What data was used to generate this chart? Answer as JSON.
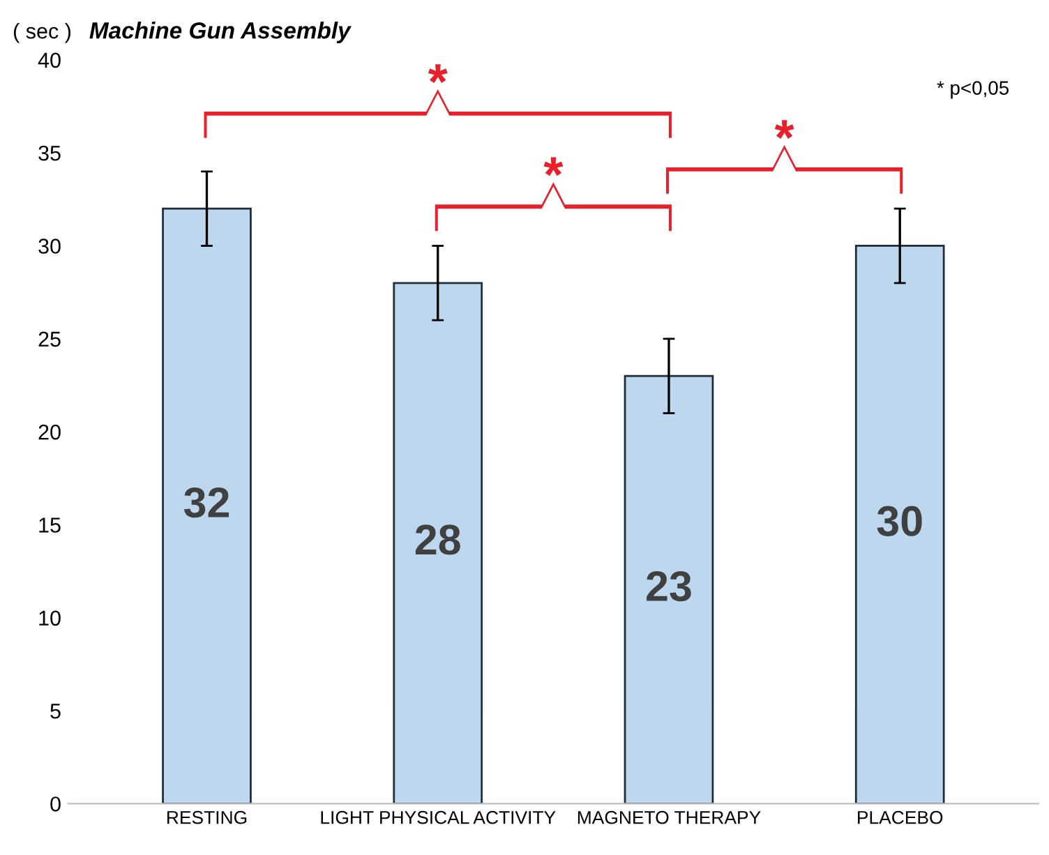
{
  "chart_data": {
    "type": "bar",
    "title": "Machine Gun Assembly",
    "ylabel": "( sec )",
    "categories": [
      "RESTING",
      "LIGHT PHYSICAL ACTIVITY",
      "MAGNETO THERAPY",
      "PLACEBO"
    ],
    "values": [
      32,
      28,
      23,
      30
    ],
    "errors": [
      2,
      2,
      2,
      2
    ],
    "color": "#bdd7ee",
    "ylim": [
      0,
      40
    ],
    "yticks": [
      0,
      5,
      10,
      15,
      20,
      25,
      30,
      35,
      40
    ],
    "grid": false,
    "data_labels": true,
    "annotations": [
      "*",
      "*",
      "*",
      "* p<0,05"
    ]
  }
}
